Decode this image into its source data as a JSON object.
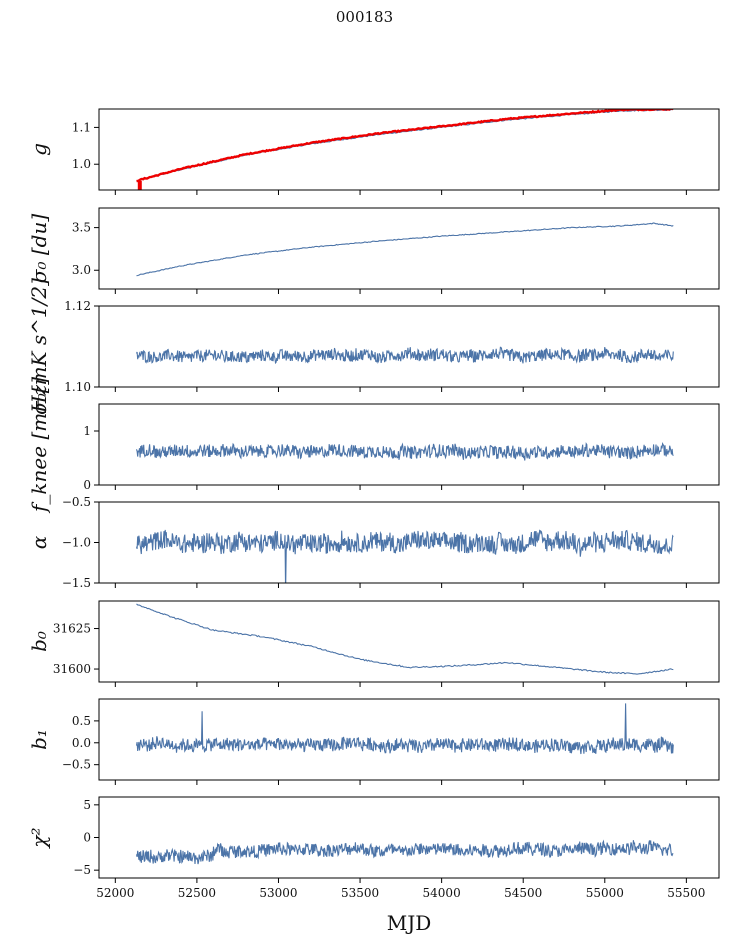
{
  "figure": {
    "title": "000183"
  },
  "colors": {
    "series": "#4c74a8",
    "reference": "#ee0000",
    "axes": "#000000"
  },
  "shared_x": {
    "label": "MJD",
    "xlim": [
      51900,
      55700
    ],
    "ticks": [
      52000,
      52500,
      53000,
      53500,
      54000,
      54500,
      55000,
      55500
    ],
    "tick_labels": [
      "52000",
      "52500",
      "53000",
      "53500",
      "54000",
      "54500",
      "55000",
      "55500"
    ],
    "data_start": 52130,
    "data_end": 55420
  },
  "chart_data": [
    {
      "type": "line",
      "id": "g",
      "ylabel": "g",
      "ylim": [
        0.93,
        1.15
      ],
      "yticks": [
        1.0,
        1.1
      ],
      "ytick_labels": [
        "1.0",
        "1.1"
      ],
      "series": [
        {
          "color": "#4c74a8",
          "x": [
            52130,
            52400,
            52800,
            53200,
            53600,
            54000,
            54400,
            54800,
            55100,
            55420
          ],
          "y": [
            0.955,
            0.985,
            1.025,
            1.055,
            1.08,
            1.1,
            1.12,
            1.135,
            1.145,
            1.148
          ]
        },
        {
          "color": "#ee0000",
          "x": [
            52130,
            52400,
            52800,
            53200,
            53600,
            54000,
            54400,
            54800,
            55100,
            55420
          ],
          "y": [
            0.955,
            0.987,
            1.027,
            1.058,
            1.083,
            1.103,
            1.123,
            1.138,
            1.148,
            1.15
          ]
        }
      ]
    },
    {
      "type": "line",
      "id": "sigma0_du",
      "ylabel": "σ₀ [du]",
      "ylim": [
        2.78,
        3.73
      ],
      "yticks": [
        3.0,
        3.5
      ],
      "ytick_labels": [
        "3.0",
        "3.5"
      ],
      "series": [
        {
          "color": "#4c74a8",
          "x": [
            52130,
            52400,
            52800,
            53200,
            53600,
            54000,
            54400,
            54800,
            55100,
            55300,
            55420
          ],
          "y": [
            2.94,
            3.05,
            3.18,
            3.27,
            3.34,
            3.4,
            3.45,
            3.5,
            3.52,
            3.55,
            3.52
          ]
        }
      ]
    },
    {
      "type": "line",
      "id": "sigma0_mk",
      "ylabel": "σ₀[mK s^1/2]",
      "ylim": [
        1.1,
        1.12
      ],
      "yticks": [
        1.1,
        1.12
      ],
      "ytick_labels": [
        "1.10",
        "1.12"
      ],
      "series": [
        {
          "color": "#4c74a8",
          "base": 1.1077,
          "noise": 0.0015
        }
      ]
    },
    {
      "type": "line",
      "id": "fknee",
      "ylabel": "f_knee [mHz]",
      "ylim": [
        0,
        1.5
      ],
      "yticks": [
        0,
        1
      ],
      "ytick_labels": [
        "0",
        "1"
      ],
      "series": [
        {
          "color": "#4c74a8",
          "base": 0.62,
          "noise": 0.12
        }
      ]
    },
    {
      "type": "line",
      "id": "alpha",
      "ylabel": "α",
      "ylim": [
        -1.5,
        -0.5
      ],
      "yticks": [
        -1.5,
        -1.0,
        -0.5
      ],
      "ytick_labels": [
        "−1.5",
        "−1.0",
        "−0.5"
      ],
      "series": [
        {
          "color": "#4c74a8",
          "base": -1.0,
          "noise": 0.12
        }
      ]
    },
    {
      "type": "line",
      "id": "b0",
      "ylabel": "b₀",
      "ylim": [
        31592,
        31642
      ],
      "yticks": [
        31600,
        31625
      ],
      "ytick_labels": [
        "31600",
        "31625"
      ],
      "series": [
        {
          "color": "#4c74a8",
          "x": [
            52130,
            52350,
            52600,
            52900,
            53200,
            53500,
            53800,
            54100,
            54400,
            54700,
            55000,
            55200,
            55420
          ],
          "y": [
            31640,
            31632,
            31624,
            31620,
            31614,
            31606,
            31601,
            31602,
            31604,
            31601,
            31598,
            31597,
            31600
          ]
        }
      ]
    },
    {
      "type": "line",
      "id": "b1",
      "ylabel": "b₁",
      "ylim": [
        -0.85,
        1.0
      ],
      "yticks": [
        -0.5,
        0.0,
        0.5
      ],
      "ytick_labels": [
        "−0.5",
        "0.0",
        "0.5"
      ],
      "series": [
        {
          "color": "#4c74a8",
          "base": -0.05,
          "noise": 0.15
        }
      ]
    },
    {
      "type": "line",
      "id": "chi2",
      "ylabel": "χ²",
      "ylim": [
        -6.2,
        6.2
      ],
      "yticks": [
        -5,
        0,
        5
      ],
      "ytick_labels": [
        "−5",
        "0",
        "5"
      ],
      "series": [
        {
          "color": "#4c74a8",
          "base": -2.0,
          "noise": 1.0
        }
      ]
    }
  ]
}
